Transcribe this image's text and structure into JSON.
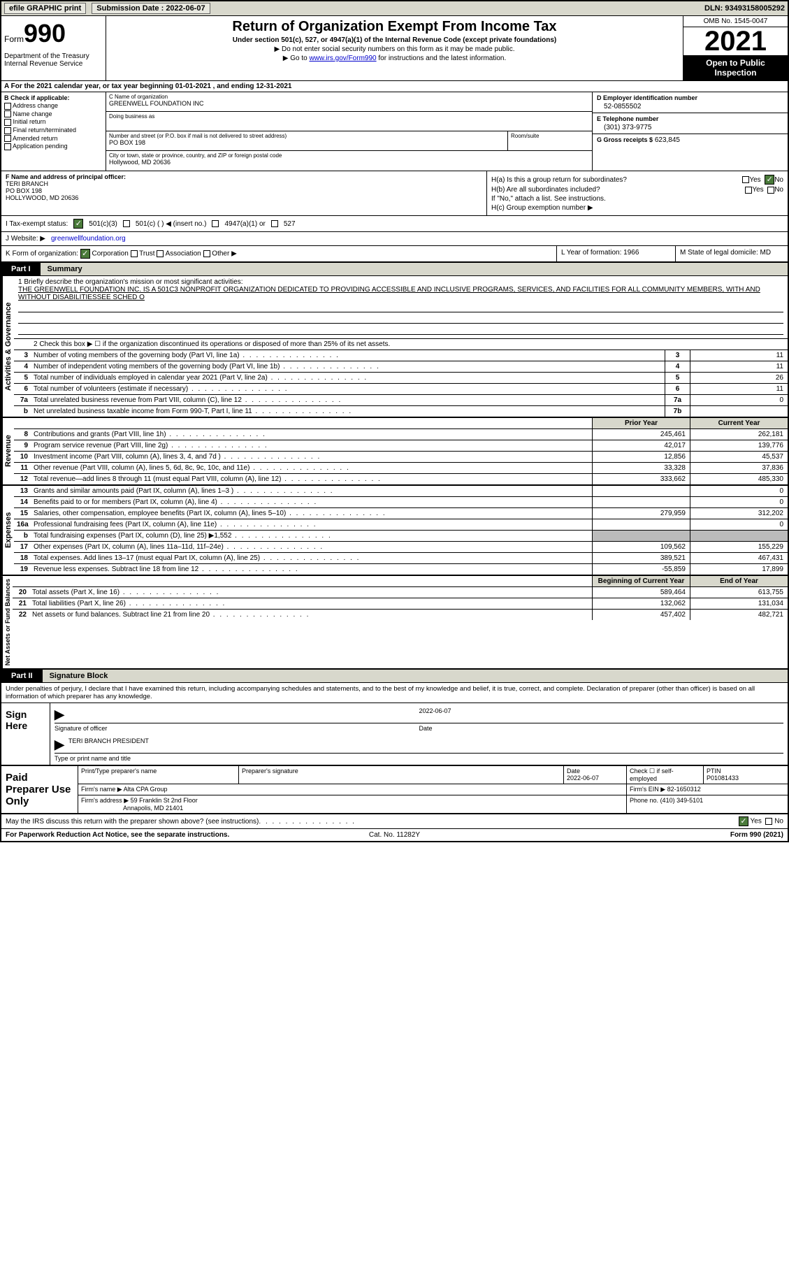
{
  "topbar": {
    "efile": "efile GRAPHIC print",
    "submission_label": "Submission Date : 2022-06-07",
    "dln": "DLN: 93493158005292"
  },
  "header": {
    "form_word": "Form",
    "form_num": "990",
    "dept": "Department of the Treasury Internal Revenue Service",
    "title": "Return of Organization Exempt From Income Tax",
    "sub": "Under section 501(c), 527, or 4947(a)(1) of the Internal Revenue Code (except private foundations)",
    "note1": "▶ Do not enter social security numbers on this form as it may be made public.",
    "note2_pre": "▶ Go to ",
    "note2_link": "www.irs.gov/Form990",
    "note2_post": " for instructions and the latest information.",
    "omb": "OMB No. 1545-0047",
    "year": "2021",
    "inspect": "Open to Public Inspection"
  },
  "section_a": "A For the 2021 calendar year, or tax year beginning 01-01-2021   , and ending 12-31-2021",
  "col_b": {
    "hdr": "B Check if applicable:",
    "items": [
      "Address change",
      "Name change",
      "Initial return",
      "Final return/terminated",
      "Amended return",
      "Application pending"
    ]
  },
  "col_c": {
    "name_lbl": "C Name of organization",
    "name": "GREENWELL FOUNDATION INC",
    "dba_lbl": "Doing business as",
    "dba": "",
    "street_lbl": "Number and street (or P.O. box if mail is not delivered to street address)",
    "street": "PO BOX 198",
    "room_lbl": "Room/suite",
    "city_lbl": "City or town, state or province, country, and ZIP or foreign postal code",
    "city": "Hollywood, MD  20636"
  },
  "col_d": {
    "ein_lbl": "D Employer identification number",
    "ein": "52-0855502",
    "phone_lbl": "E Telephone number",
    "phone": "(301) 373-9775",
    "gross_lbl": "G Gross receipts $",
    "gross": "623,845"
  },
  "col_f": {
    "lbl": "F Name and address of principal officer:",
    "name": "TERI BRANCH",
    "addr1": "PO BOX 198",
    "addr2": "HOLLYWOOD, MD  20636"
  },
  "col_h": {
    "a_lbl": "H(a)  Is this a group return for subordinates?",
    "a_yes": "Yes",
    "a_no": "No",
    "b_lbl": "H(b)  Are all subordinates included?",
    "b_yes": "Yes",
    "b_no": "No",
    "b_note": "If \"No,\" attach a list. See instructions.",
    "c_lbl": "H(c)  Group exemption number ▶"
  },
  "row_i": {
    "lbl": "I   Tax-exempt status:",
    "opt1": "501(c)(3)",
    "opt2": "501(c) (   ) ◀ (insert no.)",
    "opt3": "4947(a)(1) or",
    "opt4": "527"
  },
  "row_j": {
    "lbl": "J   Website: ▶",
    "val": "greenwellfoundation.org"
  },
  "row_k": {
    "lbl": "K Form of organization:",
    "o1": "Corporation",
    "o2": "Trust",
    "o3": "Association",
    "o4": "Other ▶",
    "l_lbl": "L Year of formation:",
    "l_val": "1966",
    "m_lbl": "M State of legal domicile:",
    "m_val": "MD"
  },
  "part1": {
    "tab": "Part I",
    "title": "Summary"
  },
  "gov": {
    "label": "Activities & Governance",
    "mission_lbl": "1   Briefly describe the organization's mission or most significant activities:",
    "mission": "THE GREENWELL FOUNDATION INC. IS A 501C3 NONPROFIT ORGANIZATION DEDICATED TO PROVIDING ACCESSIBLE AND INCLUSIVE PROGRAMS, SERVICES, AND FACILITIES FOR ALL COMMUNITY MEMBERS, WITH AND WITHOUT DISABILITIESSEE SCHED O",
    "line2": "2   Check this box ▶ ☐ if the organization discontinued its operations or disposed of more than 25% of its net assets.",
    "rows": [
      {
        "n": "3",
        "d": "Number of voting members of the governing body (Part VI, line 1a)",
        "b": "3",
        "v": "11"
      },
      {
        "n": "4",
        "d": "Number of independent voting members of the governing body (Part VI, line 1b)",
        "b": "4",
        "v": "11"
      },
      {
        "n": "5",
        "d": "Total number of individuals employed in calendar year 2021 (Part V, line 2a)",
        "b": "5",
        "v": "26"
      },
      {
        "n": "6",
        "d": "Total number of volunteers (estimate if necessary)",
        "b": "6",
        "v": "11"
      },
      {
        "n": "7a",
        "d": "Total unrelated business revenue from Part VIII, column (C), line 12",
        "b": "7a",
        "v": "0"
      },
      {
        "n": "b",
        "d": "Net unrelated business taxable income from Form 990-T, Part I, line 11",
        "b": "7b",
        "v": ""
      }
    ]
  },
  "rev": {
    "label": "Revenue",
    "hdr_prior": "Prior Year",
    "hdr_curr": "Current Year",
    "rows": [
      {
        "n": "8",
        "d": "Contributions and grants (Part VIII, line 1h)",
        "p": "245,461",
        "c": "262,181"
      },
      {
        "n": "9",
        "d": "Program service revenue (Part VIII, line 2g)",
        "p": "42,017",
        "c": "139,776"
      },
      {
        "n": "10",
        "d": "Investment income (Part VIII, column (A), lines 3, 4, and 7d )",
        "p": "12,856",
        "c": "45,537"
      },
      {
        "n": "11",
        "d": "Other revenue (Part VIII, column (A), lines 5, 6d, 8c, 9c, 10c, and 11e)",
        "p": "33,328",
        "c": "37,836"
      },
      {
        "n": "12",
        "d": "Total revenue—add lines 8 through 11 (must equal Part VIII, column (A), line 12)",
        "p": "333,662",
        "c": "485,330"
      }
    ]
  },
  "exp": {
    "label": "Expenses",
    "rows": [
      {
        "n": "13",
        "d": "Grants and similar amounts paid (Part IX, column (A), lines 1–3 )",
        "p": "",
        "c": "0"
      },
      {
        "n": "14",
        "d": "Benefits paid to or for members (Part IX, column (A), line 4)",
        "p": "",
        "c": "0"
      },
      {
        "n": "15",
        "d": "Salaries, other compensation, employee benefits (Part IX, column (A), lines 5–10)",
        "p": "279,959",
        "c": "312,202"
      },
      {
        "n": "16a",
        "d": "Professional fundraising fees (Part IX, column (A), line 11e)",
        "p": "",
        "c": "0"
      },
      {
        "n": "b",
        "d": "Total fundraising expenses (Part IX, column (D), line 25) ▶1,552",
        "p": "grey",
        "c": "grey"
      },
      {
        "n": "17",
        "d": "Other expenses (Part IX, column (A), lines 11a–11d, 11f–24e)",
        "p": "109,562",
        "c": "155,229"
      },
      {
        "n": "18",
        "d": "Total expenses. Add lines 13–17 (must equal Part IX, column (A), line 25)",
        "p": "389,521",
        "c": "467,431"
      },
      {
        "n": "19",
        "d": "Revenue less expenses. Subtract line 18 from line 12",
        "p": "-55,859",
        "c": "17,899"
      }
    ]
  },
  "net": {
    "label": "Net Assets or Fund Balances",
    "hdr_beg": "Beginning of Current Year",
    "hdr_end": "End of Year",
    "rows": [
      {
        "n": "20",
        "d": "Total assets (Part X, line 16)",
        "p": "589,464",
        "c": "613,755"
      },
      {
        "n": "21",
        "d": "Total liabilities (Part X, line 26)",
        "p": "132,062",
        "c": "131,034"
      },
      {
        "n": "22",
        "d": "Net assets or fund balances. Subtract line 21 from line 20",
        "p": "457,402",
        "c": "482,721"
      }
    ]
  },
  "part2": {
    "tab": "Part II",
    "title": "Signature Block"
  },
  "sig": {
    "decl": "Under penalties of perjury, I declare that I have examined this return, including accompanying schedules and statements, and to the best of my knowledge and belief, it is true, correct, and complete. Declaration of preparer (other than officer) is based on all information of which preparer has any knowledge.",
    "sign_here": "Sign Here",
    "date": "2022-06-07",
    "sig_lbl": "Signature of officer",
    "date_lbl": "Date",
    "name": "TERI BRANCH PRESIDENT",
    "name_lbl": "Type or print name and title"
  },
  "prep": {
    "label": "Paid Preparer Use Only",
    "r1": {
      "c1": "Print/Type preparer's name",
      "c2": "Preparer's signature",
      "c3_lbl": "Date",
      "c3": "2022-06-07",
      "c4": "Check ☐ if self-employed",
      "c5_lbl": "PTIN",
      "c5": "P01081433"
    },
    "r2": {
      "lbl": "Firm's name    ▶",
      "val": "Alta CPA Group",
      "ein_lbl": "Firm's EIN ▶",
      "ein": "82-1650312"
    },
    "r3": {
      "lbl": "Firm's address ▶",
      "val1": "59 Franklin St 2nd Floor",
      "val2": "Annapolis, MD  21401",
      "ph_lbl": "Phone no.",
      "ph": "(410) 349-5101"
    }
  },
  "footer": {
    "q": "May the IRS discuss this return with the preparer shown above? (see instructions)",
    "yes": "Yes",
    "no": "No",
    "paperwork": "For Paperwork Reduction Act Notice, see the separate instructions.",
    "cat": "Cat. No. 11282Y",
    "form": "Form 990 (2021)"
  }
}
